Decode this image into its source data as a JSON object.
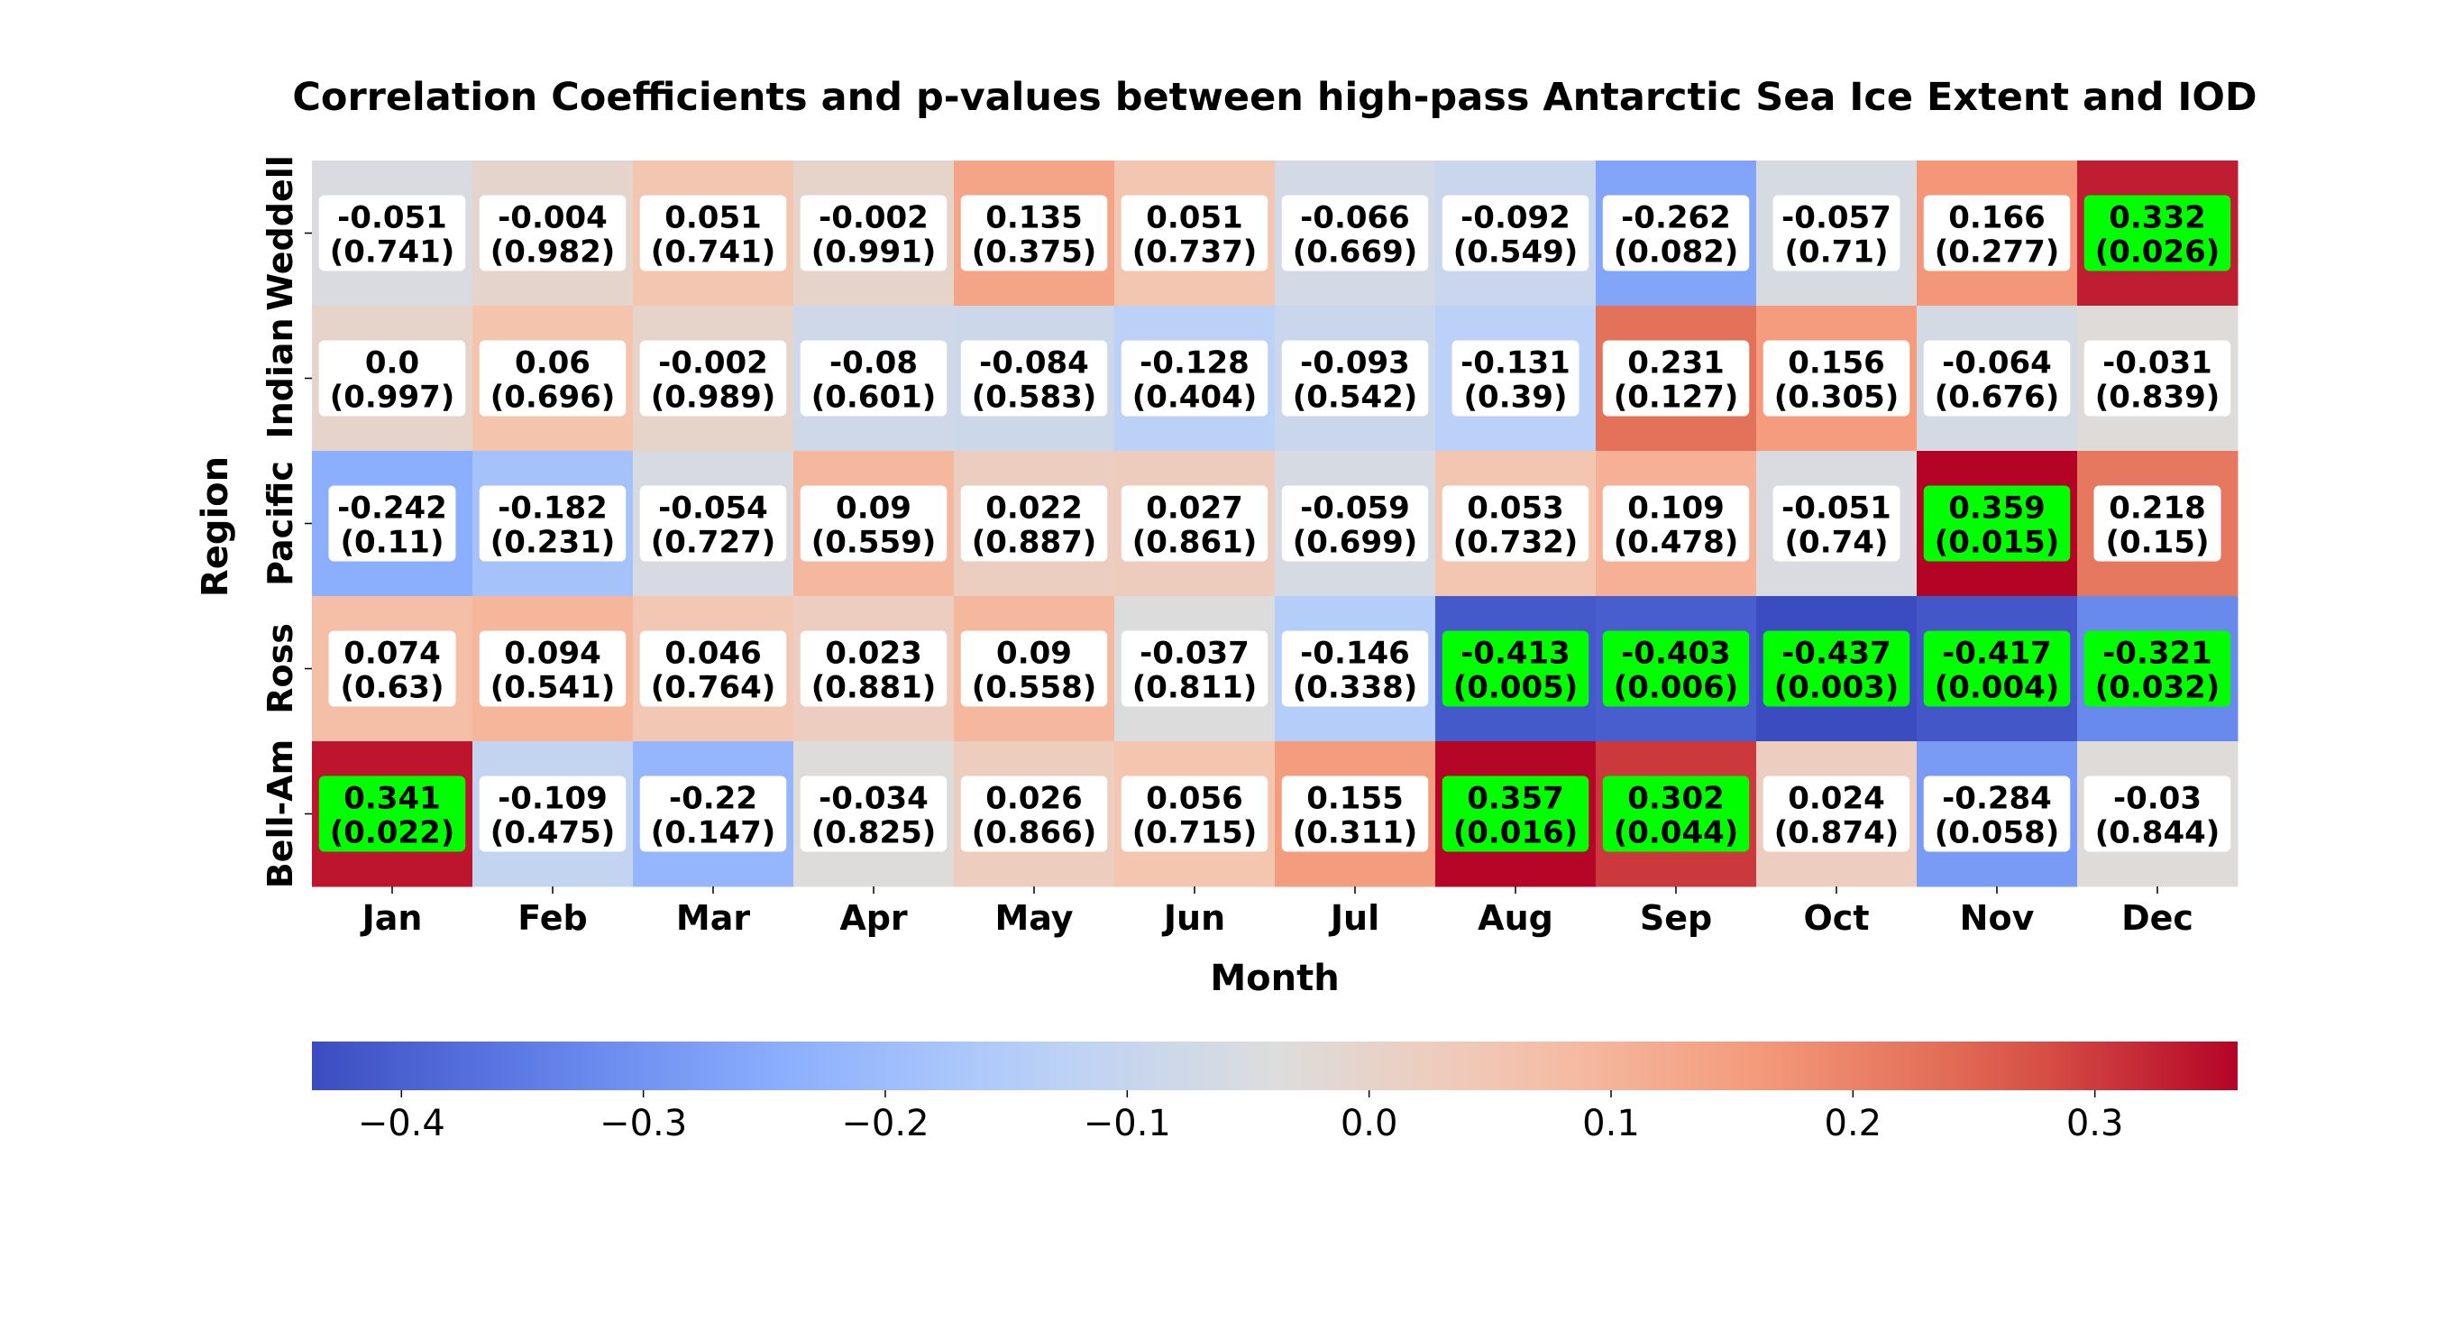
{
  "chart_data": {
    "type": "heatmap",
    "title": "Correlation Coefficients and p-values between high-pass Antarctic Sea Ice Extent and IOD",
    "xlabel": "Month",
    "ylabel": "Region",
    "x_categories": [
      "Jan",
      "Feb",
      "Mar",
      "Apr",
      "May",
      "Jun",
      "Jul",
      "Aug",
      "Sep",
      "Oct",
      "Nov",
      "Dec"
    ],
    "y_categories": [
      "Weddell",
      "Indian",
      "Pacific",
      "Ross",
      "Bell-Am"
    ],
    "values": [
      [
        "-0.051",
        "-0.004",
        "0.051",
        "-0.002",
        "0.135",
        "0.051",
        "-0.066",
        "-0.092",
        "-0.262",
        "-0.057",
        "0.166",
        "0.332"
      ],
      [
        "0.0",
        "0.06",
        "-0.002",
        "-0.08",
        "-0.084",
        "-0.128",
        "-0.093",
        "-0.131",
        "0.231",
        "0.156",
        "-0.064",
        "-0.031"
      ],
      [
        "-0.242",
        "-0.182",
        "-0.054",
        "0.09",
        "0.022",
        "0.027",
        "-0.059",
        "0.053",
        "0.109",
        "-0.051",
        "0.359",
        "0.218"
      ],
      [
        "0.074",
        "0.094",
        "0.046",
        "0.023",
        "0.09",
        "-0.037",
        "-0.146",
        "-0.413",
        "-0.403",
        "-0.437",
        "-0.417",
        "-0.321"
      ],
      [
        "0.341",
        "-0.109",
        "-0.22",
        "-0.034",
        "0.026",
        "0.056",
        "0.155",
        "0.357",
        "0.302",
        "0.024",
        "-0.284",
        "-0.03"
      ]
    ],
    "p_values": [
      [
        "(0.741)",
        "(0.982)",
        "(0.741)",
        "(0.991)",
        "(0.375)",
        "(0.737)",
        "(0.669)",
        "(0.549)",
        "(0.082)",
        "(0.71)",
        "(0.277)",
        "(0.026)"
      ],
      [
        "(0.997)",
        "(0.696)",
        "(0.989)",
        "(0.601)",
        "(0.583)",
        "(0.404)",
        "(0.542)",
        "(0.39)",
        "(0.127)",
        "(0.305)",
        "(0.676)",
        "(0.839)"
      ],
      [
        "(0.11)",
        "(0.231)",
        "(0.727)",
        "(0.559)",
        "(0.887)",
        "(0.861)",
        "(0.699)",
        "(0.732)",
        "(0.478)",
        "(0.74)",
        "(0.015)",
        "(0.15)"
      ],
      [
        "(0.63)",
        "(0.541)",
        "(0.764)",
        "(0.881)",
        "(0.558)",
        "(0.811)",
        "(0.338)",
        "(0.005)",
        "(0.006)",
        "(0.003)",
        "(0.004)",
        "(0.032)"
      ],
      [
        "(0.022)",
        "(0.475)",
        "(0.147)",
        "(0.825)",
        "(0.866)",
        "(0.715)",
        "(0.311)",
        "(0.016)",
        "(0.044)",
        "(0.874)",
        "(0.058)",
        "(0.844)"
      ]
    ],
    "significance_threshold": 0.05,
    "significant_label_color": "#00ff00",
    "label_box_color": "#ffffff",
    "colormap": "coolwarm",
    "colorbar": {
      "orientation": "horizontal",
      "range": [
        -0.437,
        0.359
      ],
      "ticks": [
        -0.4,
        -0.3,
        -0.2,
        -0.1,
        0.0,
        0.1,
        0.2,
        0.3
      ],
      "tick_labels": [
        "−0.4",
        "−0.3",
        "−0.2",
        "−0.1",
        "0.0",
        "0.1",
        "0.2",
        "0.3"
      ]
    }
  }
}
